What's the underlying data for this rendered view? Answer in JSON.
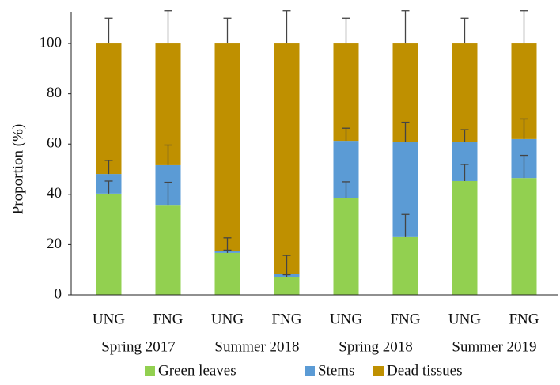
{
  "chart_data": {
    "type": "stacked_bar",
    "ylabel": "Proportion  (%)",
    "categories": [
      "UNG",
      "FNG",
      "UNG",
      "FNG",
      "UNG",
      "FNG",
      "UNG",
      "FNG"
    ],
    "groups": [
      "Spring 2017",
      "Summer 2018",
      "Spring 2018",
      "Summer 2019"
    ],
    "series": [
      {
        "name": "Green leaves",
        "color": "#92d050",
        "values": [
          40.3,
          35.8,
          16.7,
          7,
          38.4,
          23,
          45.3,
          46.5
        ],
        "errors": [
          5,
          9,
          6,
          1,
          6.6,
          9,
          6.6,
          9
        ]
      },
      {
        "name": "Stems",
        "color": "#5b9bd5",
        "values": [
          7.8,
          15.8,
          0.6,
          1.2,
          22.9,
          37.7,
          15.4,
          15.5
        ],
        "errors": [
          5.4,
          8,
          0.5,
          7.5,
          5,
          8,
          5,
          8
        ]
      },
      {
        "name": "Dead tissues",
        "color": "#bf9000",
        "values": [
          51.9,
          48.4,
          82.7,
          91.8,
          38.7,
          39.3,
          39.3,
          38
        ],
        "errors": [
          10,
          13,
          10,
          13,
          10,
          13,
          10,
          13
        ]
      }
    ],
    "ylim": [
      0,
      112.6
    ],
    "yticks": [
      0,
      20,
      40,
      60,
      80,
      100
    ],
    "legend": "bottom"
  }
}
